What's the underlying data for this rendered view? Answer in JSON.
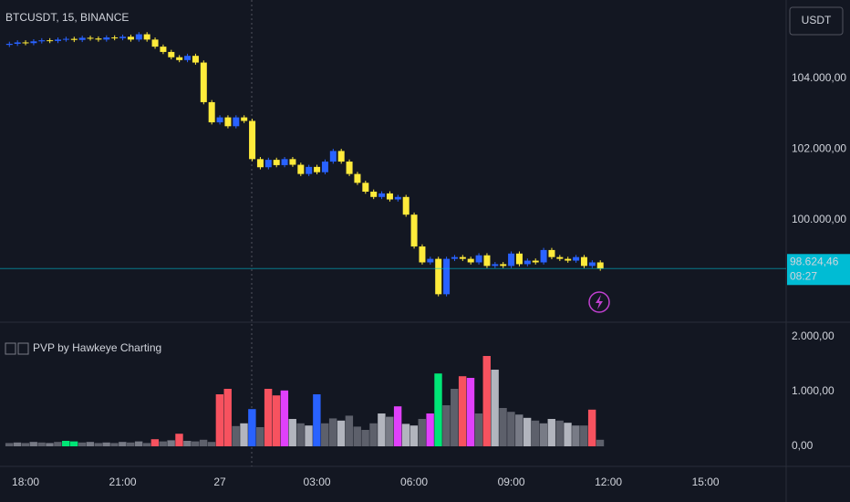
{
  "chart_data": [
    {
      "type": "candlestick",
      "title": "BTCUSDT, 15, BINANCE",
      "currency": "USDT",
      "last_price_label": "98.624,46",
      "countdown": "08:27",
      "up_color": "#2962ff",
      "down_color": "#ffeb3b",
      "x": [
        17.5,
        17.75,
        18,
        18.25,
        18.5,
        18.75,
        19,
        19.25,
        19.5,
        19.75,
        20,
        20.25,
        20.5,
        20.75,
        21,
        21.25,
        21.5,
        21.75,
        22,
        22.25,
        22.5,
        22.75,
        23,
        23.25,
        23.5,
        23.75,
        24,
        24.25,
        24.5,
        24.75,
        25,
        25.25,
        25.5,
        25.75,
        26,
        26.25,
        26.5,
        26.75,
        27,
        27.25,
        27.5,
        27.75,
        28,
        28.25,
        28.5,
        28.75,
        29,
        29.25,
        29.5,
        29.75,
        30,
        30.25,
        30.5,
        30.75,
        31,
        31.25,
        31.5,
        31.75,
        32,
        32.25,
        32.5,
        32.75,
        33,
        33.25,
        33.5,
        33.75,
        34,
        34.25,
        34.5,
        34.75,
        35,
        35.25,
        35.5,
        35.75
      ],
      "open": [
        104950,
        104980,
        105020,
        105000,
        105050,
        105080,
        105060,
        105100,
        105120,
        105090,
        105150,
        105130,
        105100,
        105160,
        105140,
        105180,
        105100,
        105250,
        105100,
        104900,
        104750,
        104600,
        104520,
        104640,
        104450,
        103330,
        102760,
        102900,
        102650,
        102900,
        102800,
        101720,
        101490,
        101700,
        101550,
        101720,
        101560,
        101300,
        101500,
        101350,
        101650,
        101950,
        101650,
        101300,
        101050,
        100800,
        100650,
        100750,
        100580,
        100650,
        100150,
        99250,
        98800,
        98900,
        97900,
        98900,
        98950,
        98900,
        98800,
        99000,
        98700,
        98750,
        98700,
        99050,
        98750,
        98850,
        98800,
        99150,
        98950,
        98900,
        98850,
        98950,
        98700,
        98800
      ],
      "high": [
        105040,
        105080,
        105080,
        105110,
        105140,
        105140,
        105160,
        105180,
        105180,
        105210,
        105210,
        105190,
        105220,
        105220,
        105240,
        105240,
        105310,
        105310,
        105160,
        104960,
        104810,
        104660,
        104700,
        104700,
        104510,
        103390,
        102960,
        102960,
        102960,
        102960,
        102860,
        101780,
        101760,
        101760,
        101780,
        101780,
        101620,
        101560,
        101560,
        101710,
        102010,
        102010,
        101710,
        101360,
        101110,
        100860,
        100810,
        100810,
        100710,
        100710,
        100210,
        99310,
        98960,
        98960,
        98960,
        99010,
        99010,
        98960,
        99060,
        99060,
        98810,
        98810,
        99110,
        99110,
        98910,
        98910,
        99210,
        99210,
        99010,
        98960,
        99010,
        99010,
        98860,
        98860
      ],
      "low": [
        104890,
        104920,
        104940,
        104940,
        104990,
        105000,
        105000,
        105040,
        105030,
        105030,
        105070,
        105040,
        105040,
        105080,
        105080,
        105040,
        105040,
        105040,
        104840,
        104690,
        104540,
        104460,
        104460,
        104390,
        103270,
        102700,
        102700,
        102590,
        102590,
        102740,
        101660,
        101430,
        101430,
        101490,
        101490,
        101500,
        101240,
        101240,
        101290,
        101290,
        101590,
        101590,
        101240,
        100990,
        100740,
        100590,
        100590,
        100520,
        100520,
        100090,
        99190,
        98740,
        98740,
        97840,
        97840,
        98840,
        98840,
        98740,
        98740,
        98640,
        98640,
        98640,
        98640,
        98690,
        98690,
        98740,
        98740,
        98890,
        98840,
        98790,
        98790,
        98640,
        98640,
        98564.46
      ],
      "close": [
        104980,
        105020,
        105000,
        105050,
        105080,
        105060,
        105100,
        105120,
        105090,
        105150,
        105130,
        105100,
        105160,
        105140,
        105180,
        105100,
        105250,
        105100,
        104900,
        104750,
        104600,
        104520,
        104640,
        104450,
        103330,
        102760,
        102900,
        102650,
        102900,
        102800,
        101720,
        101490,
        101700,
        101550,
        101720,
        101560,
        101300,
        101500,
        101350,
        101650,
        101950,
        101650,
        101300,
        101050,
        100800,
        100650,
        100750,
        100580,
        100650,
        100150,
        99250,
        98800,
        98900,
        97900,
        98900,
        98950,
        98900,
        98800,
        99000,
        98700,
        98750,
        98700,
        99050,
        98750,
        98850,
        98800,
        99150,
        98950,
        98900,
        98850,
        98950,
        98700,
        98800,
        98624.46
      ],
      "xlim": [
        17.21,
        41.49
      ],
      "ylim": [
        97135,
        106219
      ],
      "yticks": [
        {
          "value": 100000,
          "label": "100.000,00"
        },
        {
          "value": 102000,
          "label": "102.000,00"
        },
        {
          "value": 104000,
          "label": "104.000,00"
        }
      ]
    },
    {
      "type": "bar",
      "title": "PVP by Hawkeye Charting",
      "x": [
        17.5,
        17.75,
        18,
        18.25,
        18.5,
        18.75,
        19,
        19.25,
        19.5,
        19.75,
        20,
        20.25,
        20.5,
        20.75,
        21,
        21.25,
        21.5,
        21.75,
        22,
        22.25,
        22.5,
        22.75,
        23,
        23.25,
        23.5,
        23.75,
        24,
        24.25,
        24.5,
        24.75,
        25,
        25.25,
        25.5,
        25.75,
        26,
        26.25,
        26.5,
        26.75,
        27,
        27.25,
        27.5,
        27.75,
        28,
        28.25,
        28.5,
        28.75,
        29,
        29.25,
        29.5,
        29.75,
        30,
        30.25,
        30.5,
        30.75,
        31,
        31.25,
        31.5,
        31.75,
        32,
        32.25,
        32.5,
        32.75,
        33,
        33.25,
        33.5,
        33.75,
        34,
        34.25,
        34.5,
        34.75,
        35,
        35.25,
        35.5,
        35.75
      ],
      "values": [
        60,
        70,
        60,
        80,
        70,
        60,
        80,
        100,
        90,
        70,
        80,
        60,
        70,
        60,
        80,
        70,
        90,
        60,
        130,
        90,
        110,
        230,
        100,
        90,
        120,
        80,
        950,
        1050,
        370,
        420,
        680,
        350,
        1050,
        930,
        1020,
        500,
        420,
        380,
        950,
        420,
        510,
        470,
        560,
        360,
        300,
        420,
        600,
        540,
        730,
        410,
        380,
        500,
        600,
        1330,
        750,
        1050,
        1280,
        1250,
        600,
        1650,
        1400,
        700,
        630,
        580,
        520,
        470,
        420,
        500,
        470,
        430,
        380,
        380,
        670,
        120
      ],
      "colors": [
        "#5d606b",
        "#787b86",
        "#5d606b",
        "#787b86",
        "#5d606b",
        "#787b86",
        "#5d606b",
        "#00e676",
        "#00e676",
        "#5d606b",
        "#787b86",
        "#5d606b",
        "#787b86",
        "#5d606b",
        "#787b86",
        "#5d606b",
        "#787b86",
        "#5d606b",
        "#f7525f",
        "#5d606b",
        "#787b86",
        "#f7525f",
        "#787b86",
        "#5d606b",
        "#5d606b",
        "#5d606b",
        "#f7525f",
        "#f7525f",
        "#5d606b",
        "#b2b5be",
        "#2962ff",
        "#5d606b",
        "#f7525f",
        "#f7525f",
        "#e040fb",
        "#b2b5be",
        "#5d606b",
        "#b2b5be",
        "#2962ff",
        "#5d606b",
        "#5d606b",
        "#b2b5be",
        "#5d606b",
        "#5d606b",
        "#5d606b",
        "#5d606b",
        "#b2b5be",
        "#787b86",
        "#e040fb",
        "#b2b5be",
        "#b2b5be",
        "#5d606b",
        "#e040fb",
        "#00e676",
        "#5d606b",
        "#5d606b",
        "#f7525f",
        "#e040fb",
        "#5d606b",
        "#f7525f",
        "#b2b5be",
        "#5d606b",
        "#5d606b",
        "#787b86",
        "#b2b5be",
        "#5d606b",
        "#787b86",
        "#b2b5be",
        "#5d606b",
        "#b2b5be",
        "#787b86",
        "#5d606b",
        "#f7525f",
        "#5d606b"
      ],
      "xlim": [
        17.21,
        41.49
      ],
      "ylim": [
        -350,
        2217
      ],
      "yticks": [
        {
          "value": 0,
          "label": "0,00"
        },
        {
          "value": 1000,
          "label": "1.000,00"
        },
        {
          "value": 2000,
          "label": "2.000,00"
        }
      ],
      "xticks": [
        {
          "value": 18,
          "label": "18:00"
        },
        {
          "value": 21,
          "label": "21:00"
        },
        {
          "value": 24,
          "label": "27"
        },
        {
          "value": 27,
          "label": "03:00"
        },
        {
          "value": 30,
          "label": "06:00"
        },
        {
          "value": 33,
          "label": "09:00"
        },
        {
          "value": 36,
          "label": "12:00"
        },
        {
          "value": 39,
          "label": "15:00"
        }
      ]
    }
  ]
}
